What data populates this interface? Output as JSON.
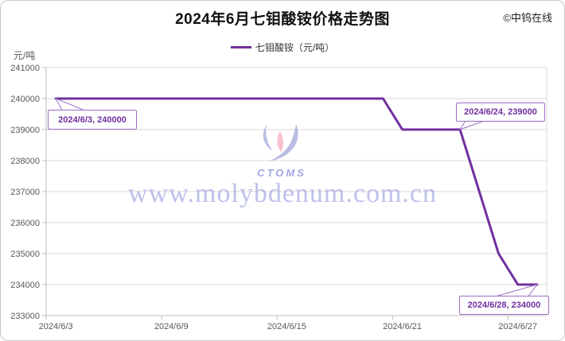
{
  "window": {
    "title": "2024年6月七钼酸铵价格走势图",
    "copyright": "©中钨在线"
  },
  "legend": {
    "label": "七钼酸铵（元/吨）"
  },
  "y_axis_unit": "元/吨",
  "watermark": {
    "brand": "CTOMS",
    "url": "www.molybdenum.com.cn"
  },
  "colors": {
    "line": "#7030A0",
    "callout_border": "#9B6FC5",
    "callout_text": "#7030A0",
    "gridline": "#D9D9D9",
    "axis": "#BFBFBF",
    "tick_label": "#595959",
    "watermark_blue": "rgba(140,145,210,0.60)",
    "watermark_pink": "rgba(244,168,184,0.70)"
  },
  "chart_data": {
    "type": "line",
    "title": "2024年6月七钼酸铵价格走势图",
    "series_name": "七钼酸铵（元/吨）",
    "ylabel": "元/吨",
    "grid": "horizontal",
    "legend_position": "top",
    "ylim": [
      233000,
      241000
    ],
    "ytick_step": 1000,
    "yticks": [
      241000,
      240000,
      239000,
      238000,
      237000,
      236000,
      235000,
      234000,
      233000
    ],
    "xticks": [
      "2024/6/3",
      "2024/6/9",
      "2024/6/15",
      "2024/6/21",
      "2024/6/27"
    ],
    "x": [
      "2024/6/3",
      "2024/6/4",
      "2024/6/5",
      "2024/6/6",
      "2024/6/7",
      "2024/6/8",
      "2024/6/9",
      "2024/6/10",
      "2024/6/11",
      "2024/6/12",
      "2024/6/13",
      "2024/6/14",
      "2024/6/15",
      "2024/6/16",
      "2024/6/17",
      "2024/6/18",
      "2024/6/19",
      "2024/6/20",
      "2024/6/21",
      "2024/6/22",
      "2024/6/23",
      "2024/6/24",
      "2024/6/25",
      "2024/6/26",
      "2024/6/27",
      "2024/6/28"
    ],
    "values": [
      240000,
      240000,
      240000,
      240000,
      240000,
      240000,
      240000,
      240000,
      240000,
      240000,
      240000,
      240000,
      240000,
      240000,
      240000,
      240000,
      240000,
      240000,
      239000,
      239000,
      239000,
      239000,
      237000,
      235000,
      234000,
      234000
    ],
    "annotations": [
      {
        "label": "2024/6/3, 240000",
        "x": "2024/6/3",
        "value": 240000
      },
      {
        "label": "2024/6/24, 239000",
        "x": "2024/6/24",
        "value": 239000
      },
      {
        "label": "2024/6/28, 234000",
        "x": "2024/6/28",
        "value": 234000
      }
    ]
  }
}
